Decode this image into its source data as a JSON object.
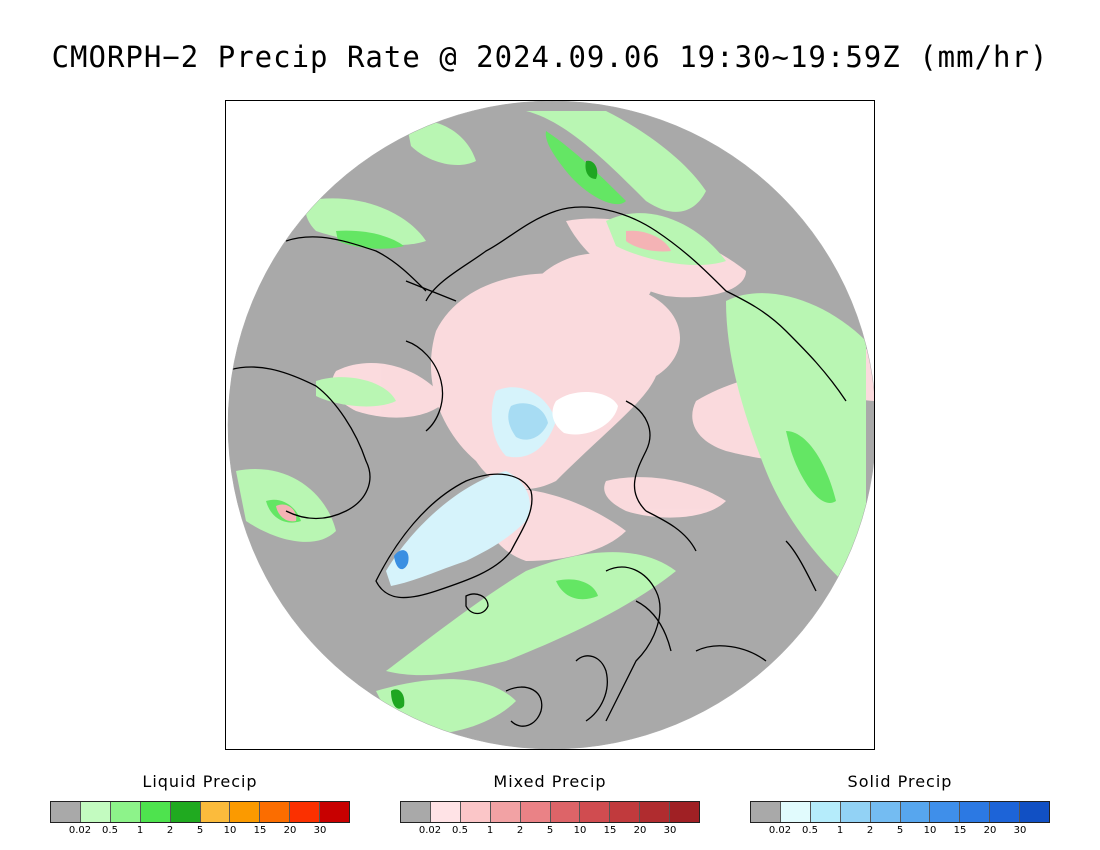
{
  "title": "CMORPH−2 Precip Rate @ 2024.09.06 19:30~19:59Z (mm/hr)",
  "tick_labels": [
    "0.02",
    "0.5",
    "1",
    "2",
    "5",
    "10",
    "15",
    "20",
    "30"
  ],
  "colors": {
    "no_precip": "#a9a9a9",
    "map_outside": "#ffffff",
    "coastline": "#000000",
    "liquid_light": "#b9f6b3",
    "liquid_mid": "#64e664",
    "liquid_heavy": "#1fa621",
    "mixed_light": "#ffdde0",
    "mixed_mid": "#f4b3b5",
    "solid_light": "#d6f3fb",
    "solid_mid": "#a7dcf3",
    "solid_heavy": "#3a8fe2"
  },
  "legends": [
    {
      "title": "Liquid Precip",
      "colors": [
        "#a9a9a9",
        "#c3fbc0",
        "#8df38a",
        "#4ee34e",
        "#20aa20",
        "#fbbb3c",
        "#fb9a00",
        "#fb6d00",
        "#fb3000",
        "#c80000"
      ]
    },
    {
      "title": "Mixed Precip",
      "colors": [
        "#a9a9a9",
        "#ffe3e6",
        "#fbc6c8",
        "#f2a2a4",
        "#ea8286",
        "#dd6468",
        "#d04c50",
        "#c13a3d",
        "#b02c2f",
        "#a02024"
      ]
    },
    {
      "title": "Solid Precip",
      "colors": [
        "#a9a9a9",
        "#e1fbfd",
        "#b5ecfb",
        "#92d2f5",
        "#74bcf2",
        "#57a6ee",
        "#3f8fea",
        "#2c79e3",
        "#1d64d8",
        "#1150c4"
      ]
    }
  ]
}
